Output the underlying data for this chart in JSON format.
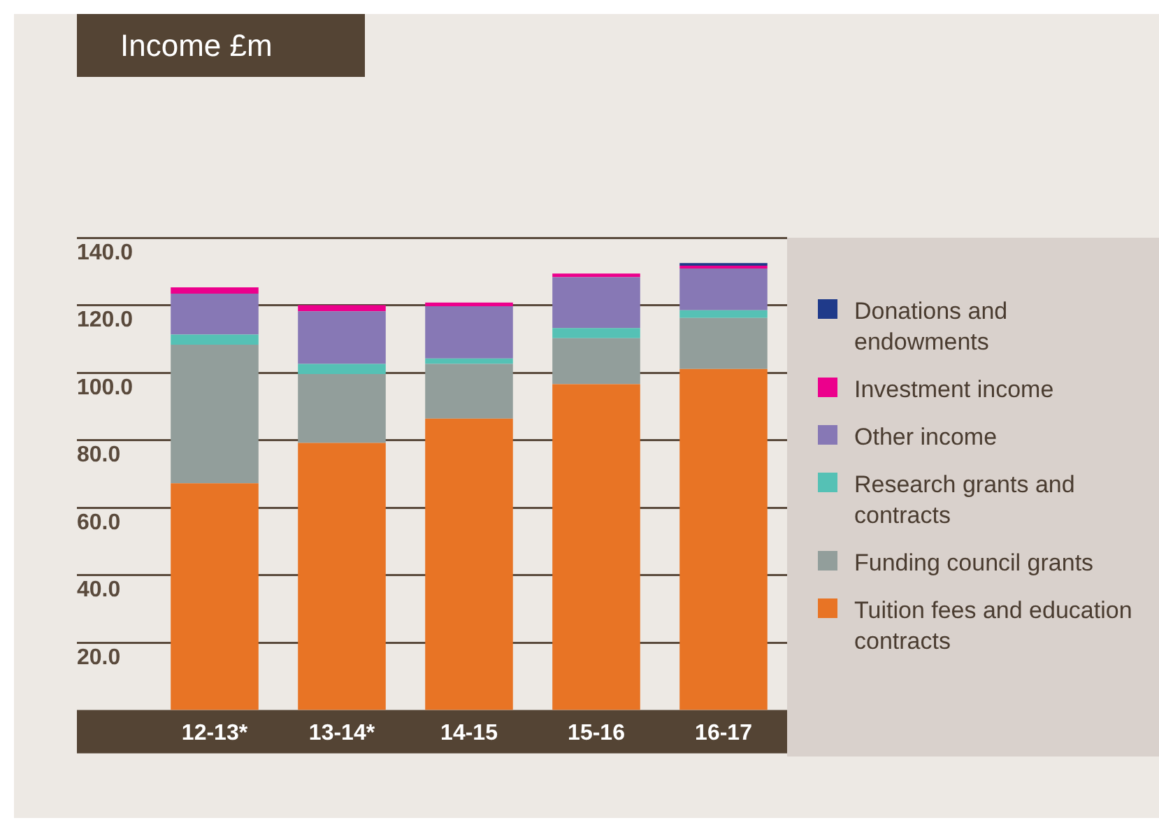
{
  "chart_data": {
    "type": "bar",
    "title": "Income £m",
    "stacked": true,
    "grid": "y",
    "legend": "right",
    "categories": [
      "12-13*",
      "13-14*",
      "14-15",
      "15-16",
      "16-17"
    ],
    "ylim": [
      0,
      140
    ],
    "yticks": [
      {
        "value": 20,
        "label": "20.0"
      },
      {
        "value": 40,
        "label": "40.0"
      },
      {
        "value": 60,
        "label": "60.0"
      },
      {
        "value": 80,
        "label": "80.0"
      },
      {
        "value": 100,
        "label": "100.0"
      },
      {
        "value": 120,
        "label": "120.0"
      },
      {
        "value": 140,
        "label": "140.0"
      }
    ],
    "series": [
      {
        "name": "Tuition fees and education contracts",
        "color": "#e87425",
        "values": [
          67.2,
          79.2,
          86.4,
          96.6,
          101.1
        ]
      },
      {
        "name": "Funding council grants",
        "color": "#929e9b",
        "values": [
          41.1,
          20.4,
          16.2,
          13.6,
          15.1
        ]
      },
      {
        "name": "Research grants and contracts",
        "color": "#55c1b5",
        "values": [
          3.0,
          3.0,
          1.6,
          3.0,
          2.3
        ]
      },
      {
        "name": "Other income",
        "color": "#8778b5",
        "values": [
          12.1,
          15.6,
          15.5,
          15.1,
          12.4
        ]
      },
      {
        "name": "Investment income",
        "color": "#ec008c",
        "values": [
          1.9,
          1.8,
          1.1,
          1.1,
          0.8
        ]
      },
      {
        "name": "Donations and endowments",
        "color": "#1f3a8a",
        "values": [
          0,
          0,
          0,
          0,
          0.8
        ]
      }
    ]
  }
}
